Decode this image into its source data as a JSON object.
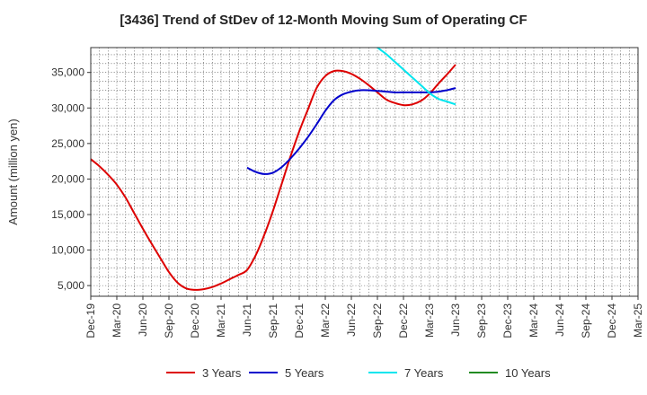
{
  "chart_data": {
    "type": "line",
    "title": "[3436]  Trend of StDev of 12-Month Moving Sum of Operating CF",
    "xlabel": "",
    "ylabel": "Amount (million yen)",
    "ylim": [
      3500,
      38500
    ],
    "yticks": [
      5000,
      10000,
      15000,
      20000,
      25000,
      30000,
      35000
    ],
    "ytick_labels": [
      "5,000",
      "10,000",
      "15,000",
      "20,000",
      "25,000",
      "30,000",
      "35,000"
    ],
    "x_tick_labels": [
      "Dec-19",
      "Mar-20",
      "Jun-20",
      "Sep-20",
      "Dec-20",
      "Mar-21",
      "Jun-21",
      "Sep-21",
      "Dec-21",
      "Mar-22",
      "Jun-22",
      "Sep-22",
      "Dec-22",
      "Mar-23",
      "Jun-23",
      "Sep-23",
      "Dec-23",
      "Mar-24",
      "Jun-24",
      "Sep-24",
      "Dec-24",
      "Mar-25"
    ],
    "x_index_range": [
      0,
      63
    ],
    "grid": true,
    "legend_position": "bottom",
    "series": [
      {
        "name": "3 Years",
        "color": "#dd0000",
        "points": [
          [
            0,
            22800
          ],
          [
            1,
            21800
          ],
          [
            2,
            20600
          ],
          [
            3,
            19200
          ],
          [
            4,
            17400
          ],
          [
            5,
            15200
          ],
          [
            6,
            13000
          ],
          [
            7,
            10900
          ],
          [
            8,
            8900
          ],
          [
            9,
            6900
          ],
          [
            10,
            5400
          ],
          [
            11,
            4600
          ],
          [
            12,
            4400
          ],
          [
            13,
            4500
          ],
          [
            14,
            4800
          ],
          [
            15,
            5300
          ],
          [
            16,
            5900
          ],
          [
            17,
            6500
          ],
          [
            18,
            7200
          ],
          [
            19,
            9300
          ],
          [
            20,
            12200
          ],
          [
            21,
            15600
          ],
          [
            22,
            19400
          ],
          [
            23,
            23200
          ],
          [
            24,
            26700
          ],
          [
            25,
            29800
          ],
          [
            26,
            32800
          ],
          [
            27,
            34500
          ],
          [
            28,
            35200
          ],
          [
            29,
            35200
          ],
          [
            30,
            34800
          ],
          [
            31,
            34100
          ],
          [
            32,
            33200
          ],
          [
            33,
            32200
          ],
          [
            34,
            31200
          ],
          [
            35,
            30700
          ],
          [
            36,
            30400
          ],
          [
            37,
            30500
          ],
          [
            38,
            31000
          ],
          [
            39,
            32000
          ],
          [
            40,
            33400
          ],
          [
            41,
            34700
          ],
          [
            42,
            36100
          ]
        ]
      },
      {
        "name": "5 Years",
        "color": "#0000cc",
        "points": [
          [
            18,
            21600
          ],
          [
            19,
            21000
          ],
          [
            20,
            20700
          ],
          [
            21,
            20900
          ],
          [
            22,
            21700
          ],
          [
            23,
            22900
          ],
          [
            24,
            24300
          ],
          [
            25,
            25900
          ],
          [
            26,
            27700
          ],
          [
            27,
            29600
          ],
          [
            28,
            31100
          ],
          [
            29,
            31900
          ],
          [
            30,
            32300
          ],
          [
            31,
            32500
          ],
          [
            32,
            32500
          ],
          [
            33,
            32400
          ],
          [
            34,
            32300
          ],
          [
            35,
            32200
          ],
          [
            36,
            32200
          ],
          [
            37,
            32200
          ],
          [
            38,
            32200
          ],
          [
            39,
            32200
          ],
          [
            40,
            32300
          ],
          [
            41,
            32500
          ],
          [
            42,
            32800
          ]
        ]
      },
      {
        "name": "7 Years",
        "color": "#00e5ee",
        "points": [
          [
            33,
            38500
          ],
          [
            34,
            37600
          ],
          [
            35,
            36500
          ],
          [
            36,
            35400
          ],
          [
            37,
            34300
          ],
          [
            38,
            33200
          ],
          [
            39,
            32100
          ],
          [
            40,
            31300
          ],
          [
            41,
            30900
          ],
          [
            42,
            30500
          ]
        ]
      },
      {
        "name": "10 Years",
        "color": "#228b22",
        "points": []
      }
    ]
  }
}
